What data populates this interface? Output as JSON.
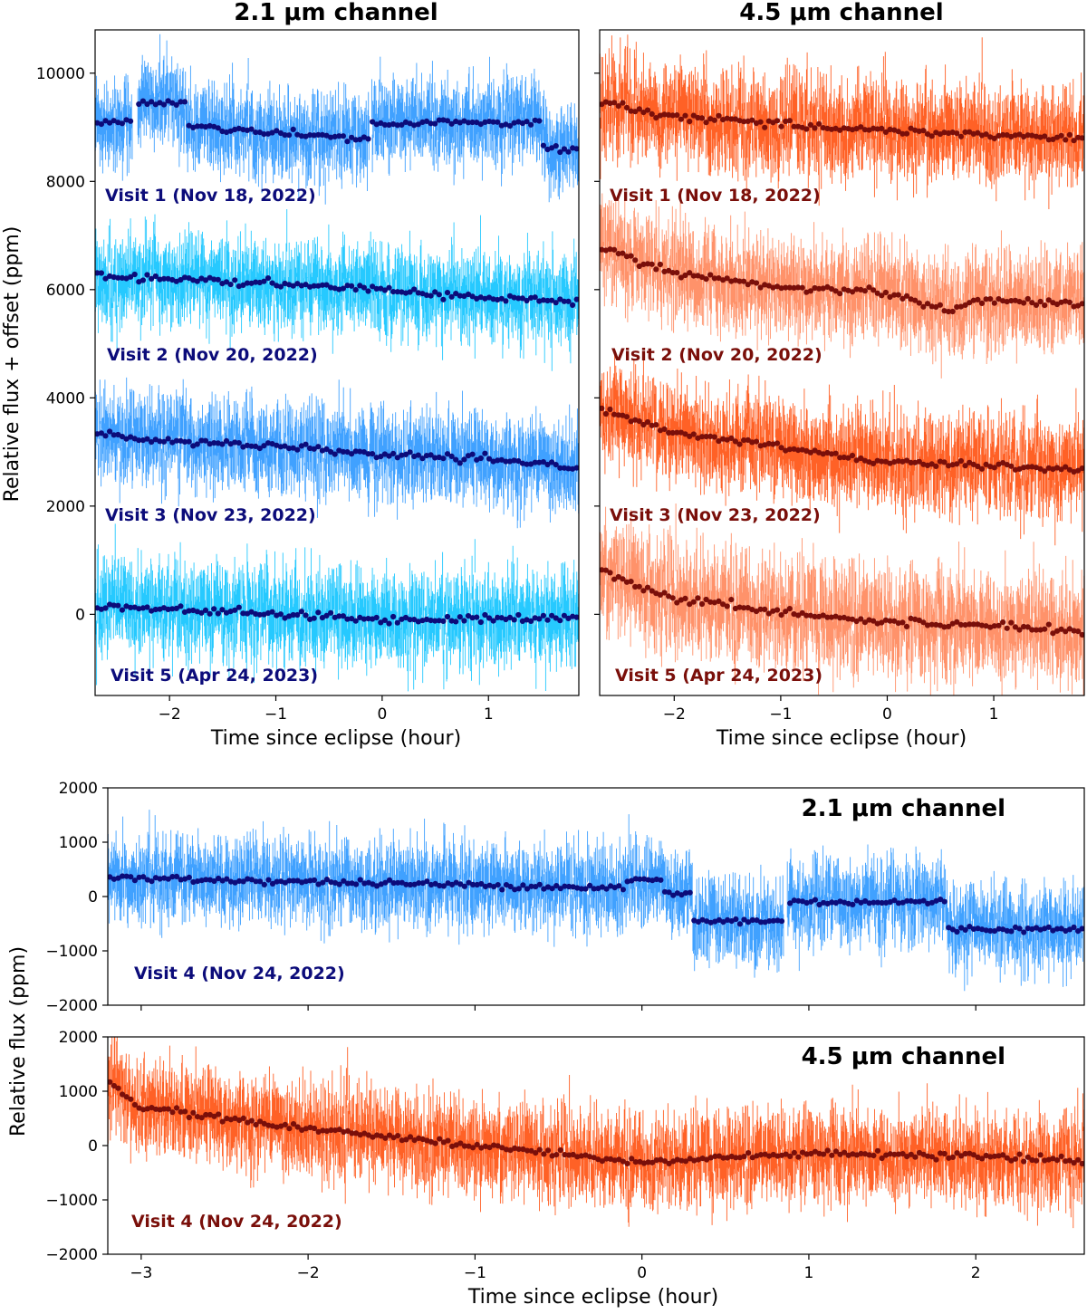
{
  "colors": {
    "dark_blue": "#0c0c7a",
    "dark_red": "#7a0f0a",
    "blue": "#1e90ff",
    "sky": "#00bfff",
    "red": "#ff4500",
    "salmon": "#ff7f50"
  },
  "figure": {
    "top_left_title": "2.1 μm channel",
    "top_right_title": "4.5 μm channel",
    "top_ylabel": "Relative flux + offset (ppm)",
    "top_xlabel": "Time since eclipse (hour)",
    "bottom_ylabel": "Relative flux (ppm)",
    "bottom_xlabel": "Time since eclipse (hour)",
    "bottom_upper_title": "2.1 μm channel",
    "bottom_lower_title": "4.5 μm channel"
  },
  "chart_data": [
    {
      "id": "top-left",
      "type": "scatter",
      "title": "2.1 μm channel",
      "xlabel": "Time since eclipse (hour)",
      "ylabel": "Relative flux + offset (ppm)",
      "xlim": [
        -2.7,
        1.85
      ],
      "ylim": [
        -1500,
        10800
      ],
      "xticks": [
        -2,
        -1,
        0,
        1
      ],
      "yticks": [
        0,
        2000,
        4000,
        6000,
        8000,
        10000
      ],
      "series": [
        {
          "name": "Visit 1 (Nov 18, 2022)",
          "offset": 9000,
          "color": "#1e90ff",
          "binned_color": "#0c0c7a",
          "scatter_ppm": 500,
          "segments": [
            {
              "x": [
                -2.7,
                -2.35
              ],
              "level": 100
            },
            {
              "x": [
                -2.3,
                -1.85
              ],
              "level": 450
            },
            {
              "x": [
                -1.85,
                -0.12
              ],
              "level": -100,
              "slope": -150
            },
            {
              "x": [
                -0.1,
                1.5
              ],
              "level": 80
            },
            {
              "x": [
                1.5,
                1.85
              ],
              "level": -400
            }
          ]
        },
        {
          "name": "Visit 2 (Nov 20, 2022)",
          "offset": 6000,
          "color": "#00bfff",
          "binned_color": "#0c0c7a",
          "scatter_ppm": 520,
          "trend": [
            [
              -2.7,
              250
            ],
            [
              -2.0,
              200
            ],
            [
              -1.0,
              100
            ],
            [
              0.0,
              0
            ],
            [
              1.0,
              -150
            ],
            [
              1.85,
              -220
            ]
          ]
        },
        {
          "name": "Visit 3 (Nov 23, 2022)",
          "offset": 3000,
          "color": "#1e90ff",
          "binned_color": "#0c0c7a",
          "scatter_ppm": 520,
          "trend": [
            [
              -2.7,
              350
            ],
            [
              -2.0,
              200
            ],
            [
              -1.0,
              100
            ],
            [
              0.0,
              -50
            ],
            [
              1.0,
              -150
            ],
            [
              1.85,
              -280
            ]
          ]
        },
        {
          "name": "Visit 5 (Apr 24, 2023)",
          "offset": 0,
          "color": "#00bfff",
          "binned_color": "#0c0c7a",
          "scatter_ppm": 560,
          "trend": [
            [
              -2.7,
              150
            ],
            [
              -2.0,
              100
            ],
            [
              -1.0,
              0
            ],
            [
              0.0,
              -100
            ],
            [
              1.0,
              -80
            ],
            [
              1.85,
              -60
            ]
          ]
        }
      ]
    },
    {
      "id": "top-right",
      "type": "scatter",
      "title": "4.5 μm channel",
      "xlabel": "Time since eclipse (hour)",
      "xlim": [
        -2.7,
        1.85
      ],
      "ylim": [
        -1500,
        10800
      ],
      "xticks": [
        -2,
        -1,
        0,
        1
      ],
      "yticks": [
        0,
        2000,
        4000,
        6000,
        8000,
        10000
      ],
      "series": [
        {
          "name": "Visit 1 (Nov 18, 2022)",
          "offset": 9000,
          "color": "#ff4500",
          "binned_color": "#7a0f0a",
          "scatter_ppm": 560,
          "trend": [
            [
              -2.7,
              450
            ],
            [
              -2.0,
              200
            ],
            [
              -1.0,
              50
            ],
            [
              0.0,
              -50
            ],
            [
              1.0,
              -150
            ],
            [
              1.85,
              -200
            ]
          ]
        },
        {
          "name": "Visit 2 (Nov 20, 2022)",
          "offset": 6000,
          "color": "#ff7f50",
          "binned_color": "#7a0f0a",
          "scatter_ppm": 560,
          "trend": [
            [
              -2.7,
              800
            ],
            [
              -2.0,
              300
            ],
            [
              -1.0,
              50
            ],
            [
              0.0,
              -50
            ],
            [
              0.6,
              -400
            ],
            [
              0.8,
              -200
            ],
            [
              1.85,
              -250
            ]
          ]
        },
        {
          "name": "Visit 3 (Nov 23, 2022)",
          "offset": 3000,
          "color": "#ff4500",
          "binned_color": "#7a0f0a",
          "scatter_ppm": 560,
          "trend": [
            [
              -2.7,
              800
            ],
            [
              -2.0,
              350
            ],
            [
              -1.0,
              100
            ],
            [
              0.0,
              -200
            ],
            [
              1.0,
              -250
            ],
            [
              1.85,
              -320
            ]
          ]
        },
        {
          "name": "Visit 5 (Apr 24, 2023)",
          "offset": 0,
          "color": "#ff7f50",
          "binned_color": "#7a0f0a",
          "scatter_ppm": 620,
          "trend": [
            [
              -2.7,
              800
            ],
            [
              -2.0,
              300
            ],
            [
              -1.0,
              50
            ],
            [
              0.0,
              -150
            ],
            [
              1.0,
              -200
            ],
            [
              1.85,
              -300
            ]
          ]
        }
      ]
    },
    {
      "id": "bottom-upper",
      "type": "scatter",
      "title": "2.1 μm channel",
      "xlim": [
        -3.2,
        2.65
      ],
      "ylim": [
        -2000,
        2000
      ],
      "xticks": [
        -3,
        -2,
        -1,
        0,
        1,
        2
      ],
      "yticks": [
        -2000,
        -1000,
        0,
        1000,
        2000
      ],
      "series": [
        {
          "name": "Visit 4 (Nov 24, 2022)",
          "offset": 0,
          "color": "#1e90ff",
          "binned_color": "#0c0c7a",
          "scatter_ppm": 480,
          "segments": [
            {
              "x": [
                -3.2,
                -0.1
              ],
              "level": 250,
              "slope": -60
            },
            {
              "x": [
                -0.1,
                0.12
              ],
              "level": 300
            },
            {
              "x": [
                0.12,
                0.3
              ],
              "level": 50
            },
            {
              "x": [
                0.3,
                0.85
              ],
              "level": -450
            },
            {
              "x": [
                0.87,
                1.83
              ],
              "level": -100
            },
            {
              "x": [
                1.83,
                2.65
              ],
              "level": -600
            }
          ]
        }
      ]
    },
    {
      "id": "bottom-lower",
      "type": "scatter",
      "title": "4.5 μm channel",
      "xlabel": "Time since eclipse (hour)",
      "xlim": [
        -3.2,
        2.65
      ],
      "ylim": [
        -2000,
        2000
      ],
      "xticks": [
        -3,
        -2,
        -1,
        0,
        1,
        2
      ],
      "yticks": [
        -2000,
        -1000,
        0,
        1000,
        2000
      ],
      "series": [
        {
          "name": "Visit 4 (Nov 24, 2022)",
          "offset": 0,
          "color": "#ff4500",
          "binned_color": "#7a0f0a",
          "scatter_ppm": 520,
          "trend": [
            [
              -3.2,
              1200
            ],
            [
              -3.0,
              700
            ],
            [
              -2.0,
              300
            ],
            [
              -1.0,
              0
            ],
            [
              0.0,
              -300
            ],
            [
              1.0,
              -150
            ],
            [
              2.0,
              -200
            ],
            [
              2.65,
              -300
            ]
          ]
        }
      ]
    }
  ]
}
